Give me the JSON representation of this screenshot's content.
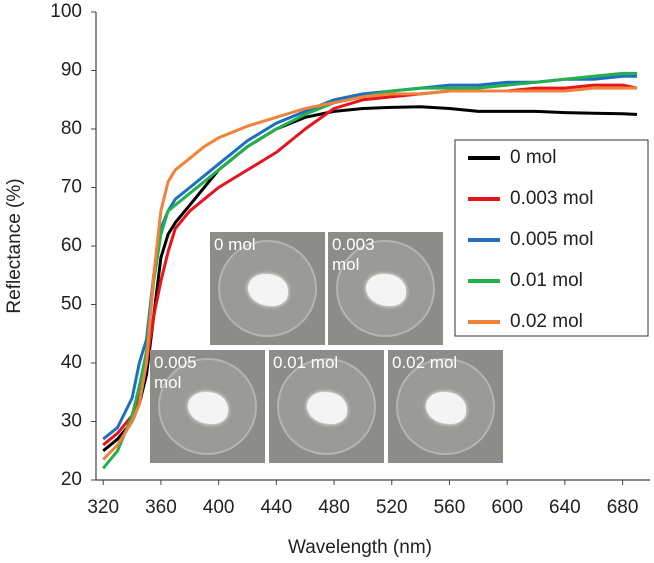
{
  "chart_data": {
    "type": "line",
    "x_label": "Wavelength (nm)",
    "y_label": "Reflectance (%)",
    "x": [
      320,
      330,
      340,
      345,
      350,
      355,
      360,
      365,
      370,
      380,
      390,
      400,
      420,
      440,
      460,
      480,
      500,
      520,
      540,
      560,
      580,
      600,
      620,
      640,
      660,
      680,
      690
    ],
    "series": [
      {
        "name": "0 mol",
        "color": "#000000",
        "values": [
          25,
          27,
          30,
          33,
          38,
          48,
          58,
          62,
          64,
          67,
          70,
          73,
          77,
          80,
          82,
          83,
          83.5,
          83.7,
          83.8,
          83.5,
          83,
          83,
          83,
          82.8,
          82.7,
          82.6,
          82.5
        ]
      },
      {
        "name": "0.003 mol",
        "color": "#e8141c",
        "values": [
          26,
          28,
          31,
          34,
          40,
          48,
          54,
          59,
          63,
          66,
          68,
          70,
          73,
          76,
          80,
          83.5,
          85,
          85.5,
          86,
          86.5,
          86.5,
          86.5,
          87,
          87,
          87.5,
          87.5,
          87
        ]
      },
      {
        "name": "0.005 mol",
        "color": "#1f6fc1",
        "values": [
          27,
          29,
          34,
          40,
          44,
          55,
          63,
          66,
          68,
          70,
          72,
          74,
          78,
          81,
          83,
          85,
          86,
          86.5,
          87,
          87.5,
          87.5,
          88,
          88,
          88.5,
          88.5,
          89,
          89
        ]
      },
      {
        "name": "0.01 mol",
        "color": "#22b14c",
        "values": [
          22,
          25,
          31,
          36,
          42,
          54,
          62,
          66,
          67,
          69,
          71,
          73,
          77,
          80,
          82.5,
          84.5,
          85.5,
          86.5,
          87,
          87,
          87,
          87.5,
          88,
          88.5,
          89,
          89.5,
          89.5
        ]
      },
      {
        "name": "0.02 mol",
        "color": "#f0823a",
        "values": [
          23.5,
          26,
          30,
          33,
          40,
          55,
          66,
          71,
          73,
          75,
          77,
          78.5,
          80.5,
          82,
          83.5,
          84.5,
          85.5,
          86,
          86,
          86.5,
          86.5,
          86.5,
          86.5,
          86.5,
          87,
          87,
          87
        ]
      }
    ],
    "xlim": [
      315,
      699
    ],
    "xticks": [
      320,
      360,
      400,
      440,
      480,
      520,
      560,
      600,
      640,
      680
    ],
    "ylim": [
      20,
      100
    ],
    "yticks": [
      20,
      30,
      40,
      50,
      60,
      70,
      80,
      90,
      100
    ],
    "legend": "right",
    "insets": [
      "0 mol",
      "0.003 mol",
      "0.005 mol",
      "0.01 mol",
      "0.02 mol"
    ]
  }
}
